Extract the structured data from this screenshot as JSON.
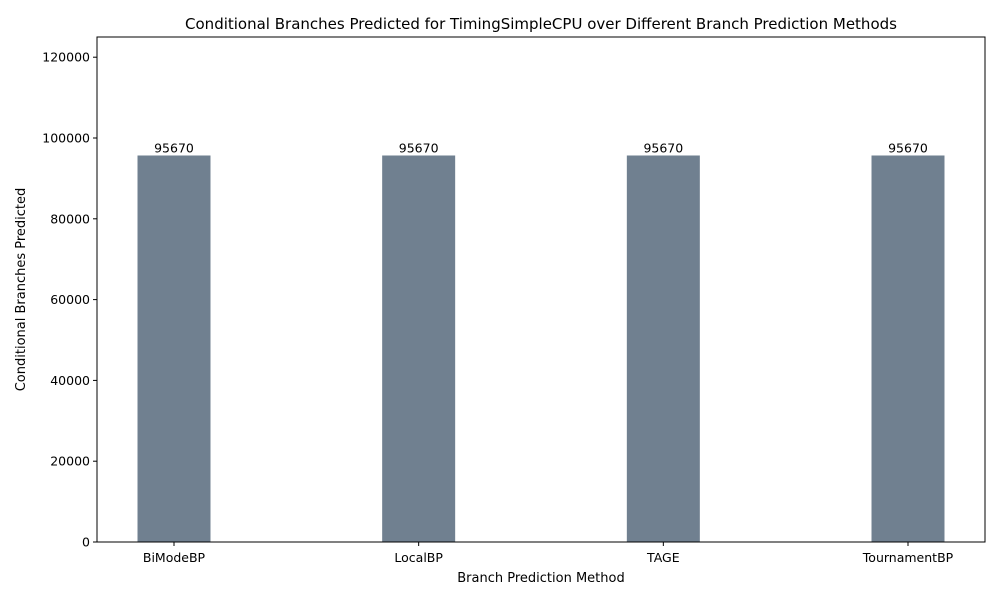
{
  "chart_data": {
    "type": "bar",
    "title": "Conditional Branches Predicted for TimingSimpleCPU over Different Branch Prediction Methods",
    "xlabel": "Branch Prediction Method",
    "ylabel": "Conditional Branches Predicted",
    "categories": [
      "BiModeBP",
      "LocalBP",
      "TAGE",
      "TournamentBP"
    ],
    "values": [
      95670,
      95670,
      95670,
      95670
    ],
    "data_labels": [
      "95670",
      "95670",
      "95670",
      "95670"
    ],
    "ylim": [
      0,
      125000
    ],
    "yticks": [
      0,
      20000,
      40000,
      60000,
      80000,
      100000,
      120000
    ],
    "bar_color": "#708090",
    "grid": false,
    "legend": "none"
  }
}
